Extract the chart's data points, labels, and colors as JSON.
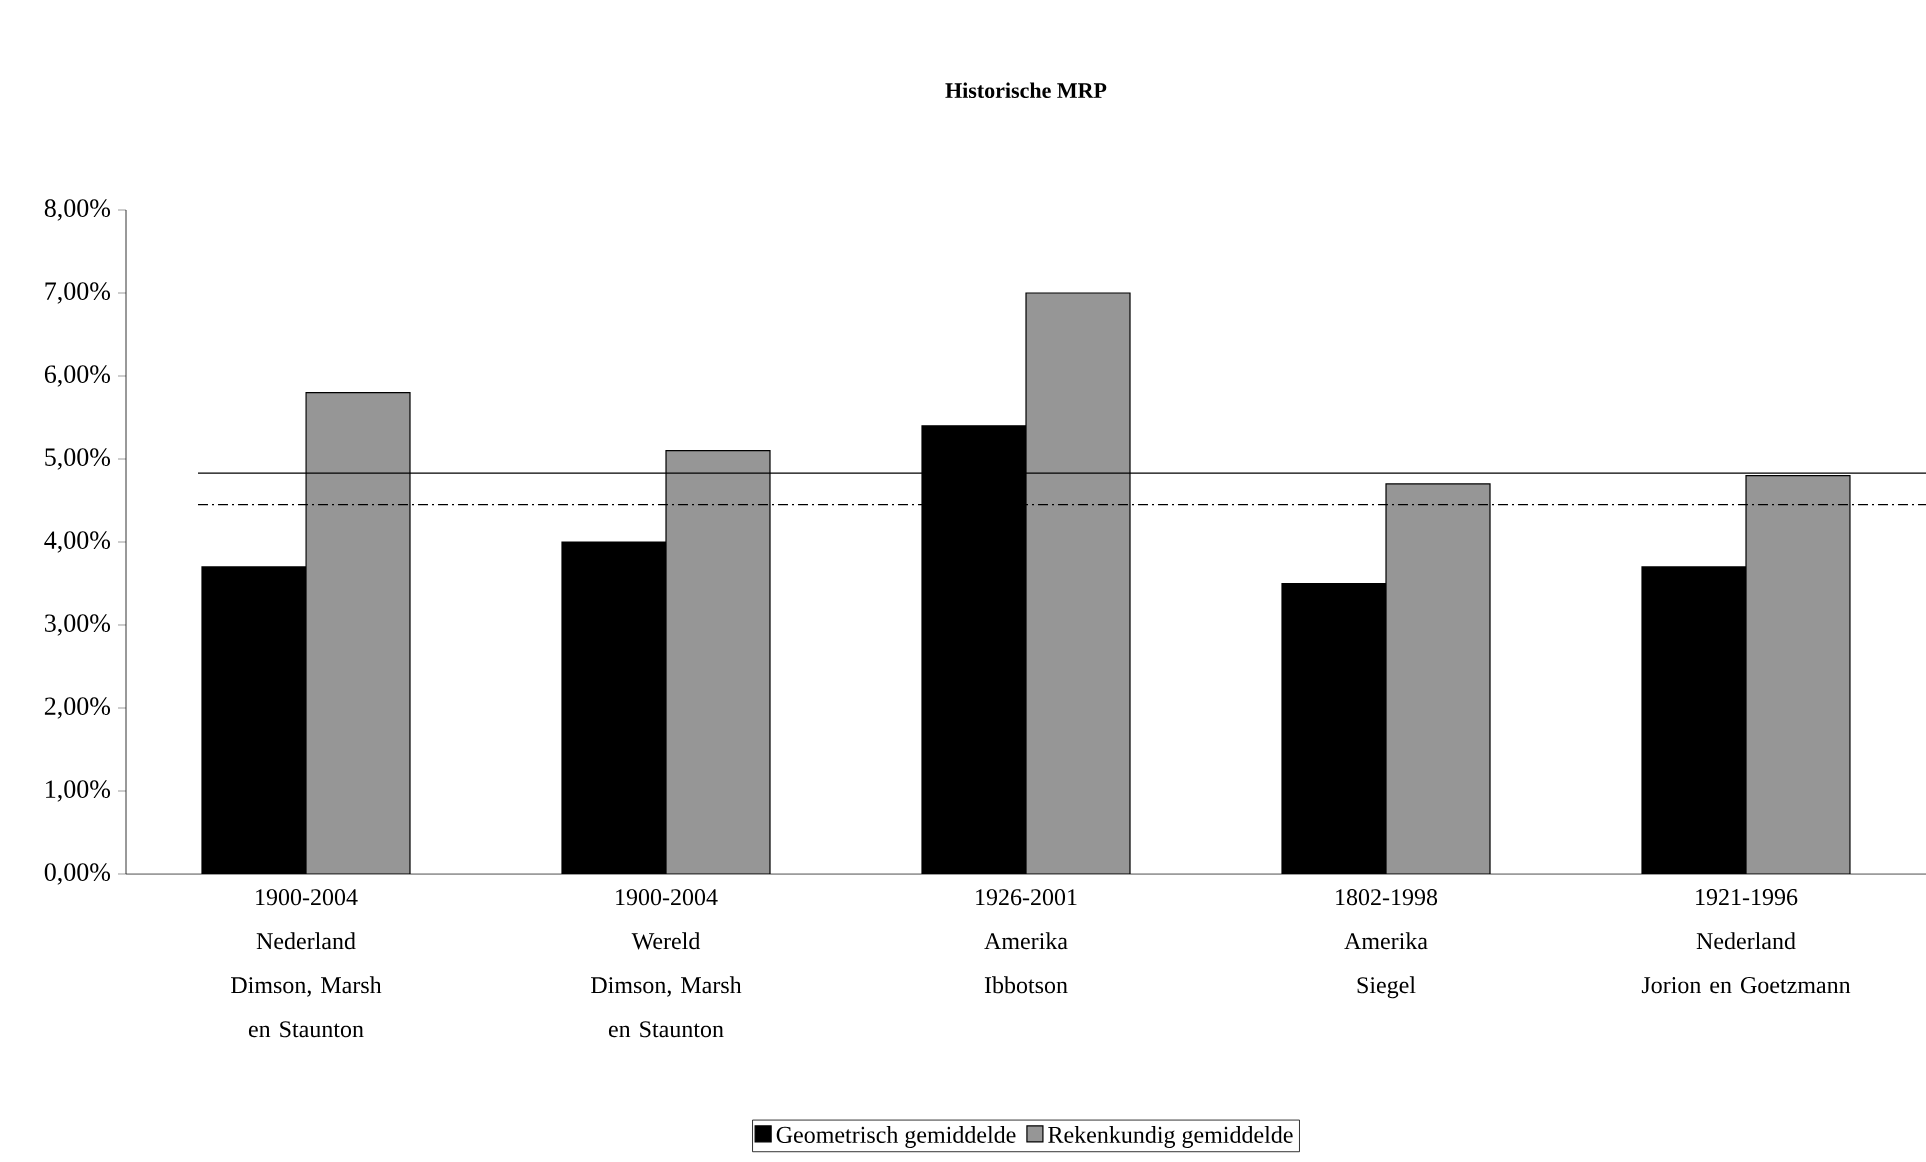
{
  "chart_data": {
    "type": "bar",
    "title": "Historische MRP",
    "categories": [
      "1900-2004\nNederland\nDimson, Marsh en Staunton",
      "1900-2004\nWereld\nDimson, Marsh en Staunton",
      "1926-2001\nAmerika\nIbbotson",
      "1802-1998\nAmerika\nSiegel",
      "1921-1996\nNederland\nJorion en Goetzmann"
    ],
    "series": [
      {
        "name": "Geometrisch gemiddelde",
        "color": "#000000",
        "values": [
          3.7,
          4.0,
          5.4,
          3.5,
          3.7
        ]
      },
      {
        "name": "Rekenkundig gemiddelde",
        "color": "#969696",
        "values": [
          5.8,
          5.1,
          7.0,
          4.7,
          4.8
        ]
      }
    ],
    "ylim": [
      0,
      8
    ],
    "yticks": [
      {
        "value": 0,
        "label": "0,00%"
      },
      {
        "value": 1,
        "label": "1,00%"
      },
      {
        "value": 2,
        "label": "2,00%"
      },
      {
        "value": 3,
        "label": "3,00%"
      },
      {
        "value": 4,
        "label": "4,00%"
      },
      {
        "value": 5,
        "label": "5,00%"
      },
      {
        "value": 6,
        "label": "6,00%"
      },
      {
        "value": 7,
        "label": "7,00%"
      },
      {
        "value": 8,
        "label": "8,00%"
      }
    ],
    "ref_lines": [
      {
        "axis": "y",
        "value": 4.83,
        "color": "#000000",
        "line_style": "solid"
      },
      {
        "axis": "y",
        "value": 4.45,
        "color": "#000000",
        "line_style": "dashdot"
      }
    ],
    "grid": false,
    "legend": "bottom"
  }
}
